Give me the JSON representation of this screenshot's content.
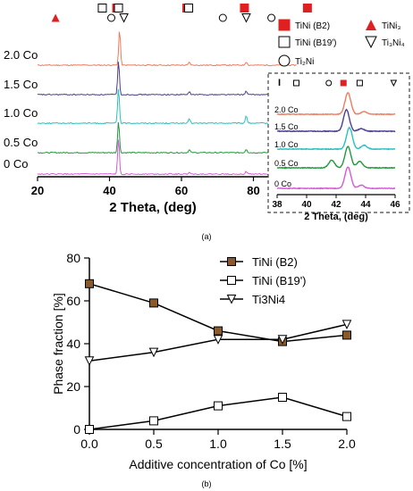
{
  "chart_data": [
    {
      "type": "line",
      "panel_label": "(a)",
      "xlabel": "2 Theta, (deg)",
      "xlim": [
        20,
        100
      ],
      "x_ticks": [
        20,
        40,
        60,
        80
      ],
      "series": [
        {
          "name": "2.0 Co",
          "color": "#f07b5e",
          "peaks": [
            {
              "x": 42.8,
              "h": 1.0
            },
            {
              "x": 62.2,
              "h": 0.08
            },
            {
              "x": 78.0,
              "h": 0.1
            }
          ]
        },
        {
          "name": "1.5 Co",
          "color": "#4b3f8f",
          "peaks": [
            {
              "x": 42.5,
              "h": 0.95
            },
            {
              "x": 62.2,
              "h": 0.08
            },
            {
              "x": 78.0,
              "h": 0.1
            }
          ]
        },
        {
          "name": "1.0 Co",
          "color": "#2cbfbf",
          "peaks": [
            {
              "x": 42.5,
              "h": 1.0
            },
            {
              "x": 62.2,
              "h": 0.12
            },
            {
              "x": 78.0,
              "h": 0.22
            }
          ]
        },
        {
          "name": "0.5 Co",
          "color": "#1f9a3a",
          "peaks": [
            {
              "x": 42.5,
              "h": 0.9
            },
            {
              "x": 62.2,
              "h": 0.08
            },
            {
              "x": 78.0,
              "h": 0.1
            }
          ]
        },
        {
          "name": "0 Co",
          "color": "#d45bd4",
          "peaks": [
            {
              "x": 42.5,
              "h": 1.0
            },
            {
              "x": 62.2,
              "h": 0.06
            },
            {
              "x": 78.0,
              "h": 0.07
            }
          ]
        }
      ],
      "phase_markers": [
        {
          "symbol": "filled-triangle",
          "x": 25
        },
        {
          "symbol": "open-square",
          "x": 38
        },
        {
          "symbol": "filled-square",
          "x": 42
        },
        {
          "symbol": "open-circle",
          "x": 40.5
        },
        {
          "symbol": "open-square",
          "x": 42.5
        },
        {
          "symbol": "open-triangle",
          "x": 44
        },
        {
          "symbol": "filled-square",
          "x": 61.5
        },
        {
          "symbol": "open-square",
          "x": 62
        },
        {
          "symbol": "filled-square",
          "x": 77.5
        },
        {
          "symbol": "open-circle",
          "x": 71.5
        },
        {
          "symbol": "open-triangle",
          "x": 78
        },
        {
          "symbol": "open-circle",
          "x": 85
        },
        {
          "symbol": "filled-square",
          "x": 95
        }
      ],
      "legend": [
        {
          "symbol": "filled-square",
          "label": "TiNi (B2)"
        },
        {
          "symbol": "filled-triangle",
          "label": "TiNi₃"
        },
        {
          "symbol": "open-square",
          "label": "TiNi (B19′)"
        },
        {
          "symbol": "open-triangle",
          "label": "Ti₃Ni₄"
        },
        {
          "symbol": "open-circle",
          "label": "Ti₂Ni"
        }
      ],
      "inset": {
        "xlabel": "2 Theta, (deg)",
        "xlim": [
          38,
          46
        ],
        "x_ticks": [
          38,
          40,
          42,
          44,
          46
        ],
        "marker_symbol_label": "I",
        "series": [
          {
            "name": "2.0 Co",
            "color": "#f07b5e",
            "peaks": [
              {
                "x": 42.8,
                "h": 1.0
              },
              {
                "x": 43.9,
                "h": 0.12
              }
            ]
          },
          {
            "name": "1.5 Co",
            "color": "#4b3f8f",
            "peaks": [
              {
                "x": 42.7,
                "h": 1.0
              },
              {
                "x": 43.7,
                "h": 0.12
              }
            ]
          },
          {
            "name": "1.0 Co",
            "color": "#2cbfbf",
            "peaks": [
              {
                "x": 42.9,
                "h": 1.0
              },
              {
                "x": 43.9,
                "h": 0.18
              }
            ]
          },
          {
            "name": "0.5 Co",
            "color": "#1f9a3a",
            "peaks": [
              {
                "x": 41.7,
                "h": 0.35
              },
              {
                "x": 42.8,
                "h": 1.0
              },
              {
                "x": 43.6,
                "h": 0.3
              }
            ]
          },
          {
            "name": "0 Co",
            "color": "#d45bd4",
            "peaks": [
              {
                "x": 42.8,
                "h": 1.0
              },
              {
                "x": 43.7,
                "h": 0.15
              }
            ]
          }
        ],
        "markers": [
          {
            "symbol": "open-square",
            "x": 39.3
          },
          {
            "symbol": "open-circle",
            "x": 41.5
          },
          {
            "symbol": "filled-square",
            "x": 42.5
          },
          {
            "symbol": "open-square",
            "x": 43.6
          },
          {
            "symbol": "open-triangle",
            "x": 45.9
          }
        ]
      }
    },
    {
      "type": "line",
      "panel_label": "(b)",
      "xlabel": "Additive concentration of Co [%]",
      "ylabel": "Phase fraction [%]",
      "xlim": [
        0,
        2
      ],
      "ylim": [
        0,
        80
      ],
      "x_ticks": [
        "0.0",
        "0.5",
        "1.0",
        "1.5",
        "2.0"
      ],
      "y_ticks": [
        0,
        20,
        40,
        60,
        80
      ],
      "x": [
        0,
        0.5,
        1.0,
        1.5,
        2.0
      ],
      "series": [
        {
          "name": "TiNi (B2)",
          "marker": "filled-square",
          "color": "#8b5a2b",
          "values": [
            68,
            59,
            46,
            41,
            44
          ]
        },
        {
          "name": "TiNi (B19')",
          "marker": "open-square",
          "color": "#000000",
          "values": [
            0,
            4,
            11,
            15,
            6
          ]
        },
        {
          "name": "Ti3Ni4",
          "marker": "open-triangle",
          "color": "#000000",
          "values": [
            32,
            36,
            42,
            42,
            49
          ]
        }
      ]
    }
  ]
}
